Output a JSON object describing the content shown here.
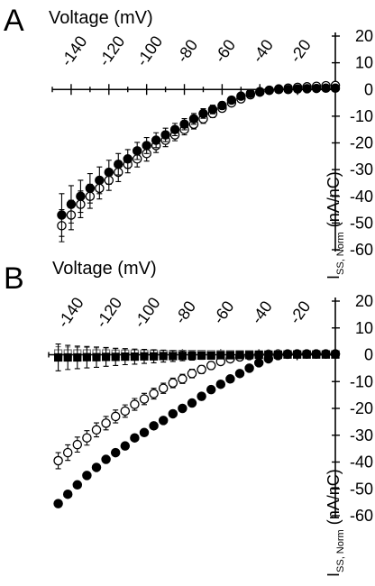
{
  "chart_data": [
    {
      "type": "scatter",
      "panel_label": "A",
      "xlabel": "Voltage (mV)",
      "ylabel_main": "I",
      "ylabel_sub": "SS, Norm",
      "ylabel_unit": "(nA/nC)",
      "x_ticks": [
        -140,
        -120,
        -100,
        -80,
        -60,
        -40,
        -20
      ],
      "y_ticks": [
        20,
        10,
        0,
        -10,
        -20,
        -30,
        -40,
        -50,
        -60
      ],
      "xlim": [
        -150,
        0
      ],
      "ylim": [
        -60,
        20
      ],
      "grid": false,
      "series": [
        {
          "marker": "filled-circle",
          "x": [
            -145,
            -140,
            -135,
            -130,
            -125,
            -120,
            -115,
            -110,
            -105,
            -100,
            -95,
            -90,
            -85,
            -80,
            -75,
            -70,
            -65,
            -60,
            -55,
            -50,
            -45,
            -40,
            -35,
            -30,
            -25,
            -20,
            -15,
            -10,
            -5,
            0
          ],
          "y": [
            -47,
            -43,
            -40,
            -37,
            -34,
            -31,
            -28,
            -26,
            -23,
            -21,
            -19,
            -17,
            -15,
            -13,
            -11,
            -9,
            -7.5,
            -6,
            -4,
            -2.5,
            -1.5,
            -0.8,
            -0.3,
            0,
            0,
            0.2,
            0.3,
            0.4,
            0.5,
            0.5
          ],
          "err": [
            8,
            7,
            6,
            5.5,
            5,
            4.5,
            4,
            3.5,
            3.2,
            3,
            2.8,
            2.5,
            2.3,
            2.1,
            2,
            1.8,
            1.6,
            1.4,
            1.2,
            1,
            0.8,
            0.6,
            0.5,
            0.5,
            0.5,
            0.5,
            0.5,
            0.5,
            0.5,
            0.5
          ]
        },
        {
          "marker": "open-circle",
          "x": [
            -145,
            -140,
            -135,
            -130,
            -125,
            -120,
            -115,
            -110,
            -105,
            -100,
            -95,
            -90,
            -85,
            -80,
            -75,
            -70,
            -65,
            -60,
            -55,
            -50,
            -45,
            -40,
            -35,
            -30,
            -25,
            -20,
            -15,
            -10,
            -5,
            0
          ],
          "y": [
            -51,
            -47,
            -43,
            -40,
            -37,
            -34,
            -31,
            -28,
            -26,
            -24,
            -21,
            -19,
            -17,
            -15,
            -13,
            -11,
            -9,
            -7,
            -5,
            -3.5,
            -2,
            -1,
            -0.3,
            0.2,
            0.5,
            0.8,
            1,
            1.2,
            1.4,
            1.5
          ],
          "err": [
            6,
            5.5,
            5,
            4.5,
            4,
            3.8,
            3.5,
            3.2,
            3,
            2.8,
            2.6,
            2.4,
            2.2,
            2,
            1.8,
            1.7,
            1.5,
            1.3,
            1.1,
            1,
            0.9,
            0.8,
            0.7,
            0.6,
            0.6,
            0.6,
            0.6,
            0.6,
            0.6,
            0.6
          ]
        }
      ]
    },
    {
      "type": "scatter",
      "panel_label": "B",
      "xlabel": "Voltage (mV)",
      "ylabel_main": "I",
      "ylabel_sub": "SS, Norm",
      "ylabel_unit": "(nA/nC)",
      "x_ticks": [
        -140,
        -120,
        -100,
        -80,
        -60,
        -40,
        -20
      ],
      "y_ticks": [
        20,
        10,
        0,
        -10,
        -20,
        -30,
        -40,
        -50,
        -60
      ],
      "xlim": [
        -150,
        0
      ],
      "ylim": [
        -60,
        20
      ],
      "grid": false,
      "series": [
        {
          "marker": "filled-circle",
          "x": [
            -145,
            -140,
            -135,
            -130,
            -125,
            -120,
            -115,
            -110,
            -105,
            -100,
            -95,
            -90,
            -85,
            -80,
            -75,
            -70,
            -65,
            -60,
            -55,
            -50,
            -45,
            -40,
            -35,
            -30,
            -25,
            -20,
            -15,
            -10,
            -5,
            0
          ],
          "y": [
            -55.5,
            -52,
            -48.5,
            -45,
            -42,
            -39,
            -36.5,
            -34,
            -31,
            -29,
            -26.5,
            -24.5,
            -22,
            -20,
            -18,
            -15.5,
            -13,
            -11,
            -9,
            -7,
            -5,
            -3,
            -1.5,
            -0.3,
            0.2,
            0.3,
            0.3,
            0.3,
            0.3,
            0.3
          ],
          "err": [
            1.2,
            1.2,
            1.2,
            1.1,
            1.1,
            1,
            1,
            1,
            1,
            1,
            0.9,
            0.9,
            0.9,
            0.8,
            0.8,
            0.8,
            0.7,
            0.7,
            0.7,
            0.6,
            0.6,
            0.6,
            0.5,
            0.5,
            0.5,
            0.5,
            0.5,
            0.5,
            0.5,
            0.5
          ]
        },
        {
          "marker": "open-circle",
          "x": [
            -145,
            -140,
            -135,
            -130,
            -125,
            -120,
            -115,
            -110,
            -105,
            -100,
            -95,
            -90,
            -85,
            -80,
            -75,
            -70,
            -65,
            -60,
            -55,
            -50,
            -45,
            -40,
            -35,
            -30,
            -25,
            -20,
            -15,
            -10,
            -5,
            0
          ],
          "y": [
            -39.5,
            -36.5,
            -33.5,
            -31,
            -28,
            -25.5,
            -23,
            -21,
            -18.5,
            -16.5,
            -14.5,
            -12.5,
            -10.5,
            -9,
            -7,
            -5.5,
            -4,
            -2.5,
            -1.5,
            -0.8,
            -0.3,
            0,
            0.2,
            0.3,
            0.3,
            0.3,
            0.3,
            0.3,
            0.3,
            0.3
          ],
          "err": [
            3,
            2.9,
            2.8,
            2.7,
            2.6,
            2.5,
            2.4,
            2.3,
            2.2,
            2.1,
            2,
            1.9,
            1.8,
            1.7,
            1.6,
            1.5,
            1.4,
            1.3,
            1.2,
            1.1,
            1,
            1,
            0.9,
            0.9,
            0.8,
            0.8,
            0.8,
            0.8,
            0.8,
            0.8
          ]
        },
        {
          "marker": "filled-square",
          "x": [
            -145,
            -140,
            -135,
            -130,
            -125,
            -120,
            -115,
            -110,
            -105,
            -100,
            -95,
            -90,
            -85,
            -80,
            -75,
            -70,
            -65,
            -60,
            -55,
            -50,
            -45,
            -40,
            -35,
            -30,
            -25,
            -20,
            -15,
            -10,
            -5,
            0
          ],
          "y": [
            -1,
            -1,
            -1,
            -0.9,
            -0.9,
            -0.8,
            -0.8,
            -0.7,
            -0.7,
            -0.6,
            -0.6,
            -0.5,
            -0.5,
            -0.4,
            -0.4,
            -0.3,
            -0.3,
            -0.2,
            -0.2,
            -0.1,
            -0.1,
            0,
            0,
            0,
            0.1,
            0.1,
            0.1,
            0.1,
            0.1,
            0.1
          ],
          "err": [
            5,
            4.5,
            4.2,
            4,
            3.8,
            3.5,
            3.2,
            3,
            2.8,
            2.6,
            2.4,
            2.2,
            2,
            1.8,
            1.6,
            1.4,
            1.3,
            1.2,
            1.1,
            1,
            0.9,
            0.8,
            0.7,
            0.6,
            0.6,
            0.6,
            0.6,
            0.6,
            0.6,
            0.6
          ]
        },
        {
          "marker": "open-square",
          "x": [
            -145,
            -140,
            -135,
            -130,
            -125,
            -120,
            -115,
            -110,
            -105,
            -100,
            -95,
            -90,
            -85,
            -80,
            -75,
            -70,
            -65,
            -60,
            -55,
            -50,
            -45,
            -40,
            -35,
            -30,
            -25,
            -20,
            -15,
            -10,
            -5,
            0
          ],
          "y": [
            0.5,
            0.5,
            0.5,
            0.5,
            0.5,
            0.5,
            0.4,
            0.4,
            0.4,
            0.4,
            0.4,
            0.3,
            0.3,
            0.3,
            0.3,
            0.3,
            0.2,
            0.2,
            0.2,
            0.2,
            0.2,
            0.1,
            0.1,
            0.1,
            0.1,
            0.1,
            0.1,
            0.1,
            0.1,
            0.1
          ],
          "err": [
            2.5,
            2.4,
            2.3,
            2.2,
            2.1,
            2,
            1.9,
            1.8,
            1.7,
            1.6,
            1.5,
            1.4,
            1.3,
            1.2,
            1.1,
            1,
            0.9,
            0.8,
            0.8,
            0.7,
            0.7,
            0.6,
            0.6,
            0.6,
            0.5,
            0.5,
            0.5,
            0.5,
            0.5,
            0.5
          ]
        }
      ]
    }
  ]
}
